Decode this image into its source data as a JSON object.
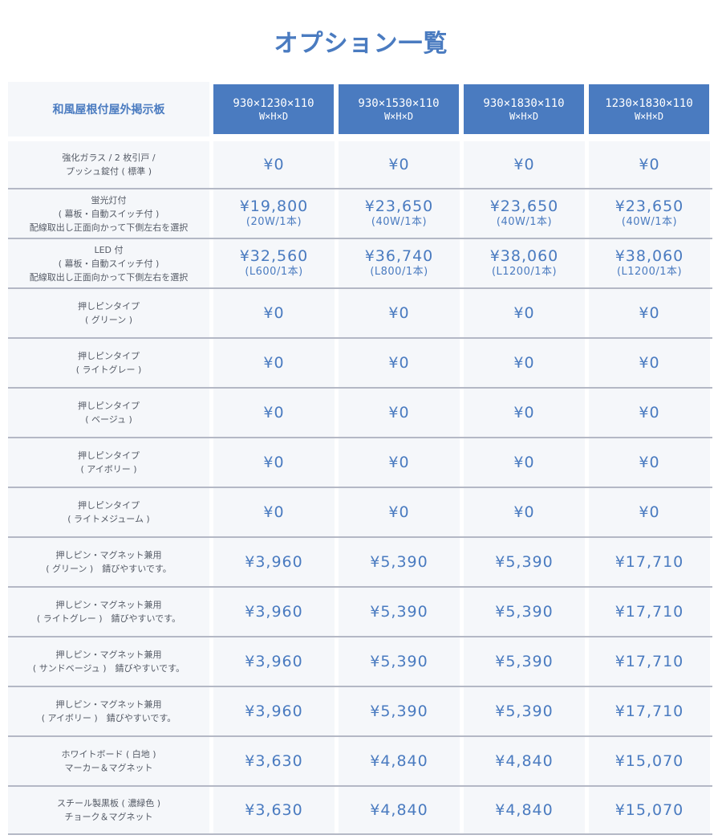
{
  "title": "オプション一覧",
  "header": {
    "label": "和風屋根付屋外掲示板",
    "columns": [
      {
        "size": "930×1230×110",
        "unit": "W×H×D"
      },
      {
        "size": "930×1530×110",
        "unit": "W×H×D"
      },
      {
        "size": "930×1830×110",
        "unit": "W×H×D"
      },
      {
        "size": "1230×1830×110",
        "unit": "W×H×D"
      }
    ]
  },
  "rows": [
    {
      "label": [
        "強化ガラス / 2 枚引戸 /",
        "プッシュ錠付 ( 標準 )"
      ],
      "prices": [
        {
          "value": "¥0"
        },
        {
          "value": "¥0"
        },
        {
          "value": "¥0"
        },
        {
          "value": "¥0"
        }
      ]
    },
    {
      "label": [
        "蛍光灯付",
        "( 幕板・自動スイッチ付 )",
        "配線取出し正面向かって下側左右を選択"
      ],
      "prices": [
        {
          "value": "¥19,800",
          "note": "(20W/1本)"
        },
        {
          "value": "¥23,650",
          "note": "(40W/1本)"
        },
        {
          "value": "¥23,650",
          "note": "(40W/1本)"
        },
        {
          "value": "¥23,650",
          "note": "(40W/1本)"
        }
      ]
    },
    {
      "label": [
        "LED 付",
        "( 幕板・自動スイッチ付 )",
        "配線取出し正面向かって下側左右を選択"
      ],
      "prices": [
        {
          "value": "¥32,560",
          "note": "(L600/1本)"
        },
        {
          "value": "¥36,740",
          "note": "(L800/1本)"
        },
        {
          "value": "¥38,060",
          "note": "(L1200/1本)"
        },
        {
          "value": "¥38,060",
          "note": "(L1200/1本)"
        }
      ]
    },
    {
      "label": [
        "押しピンタイプ",
        "( グリーン )"
      ],
      "prices": [
        {
          "value": "¥0"
        },
        {
          "value": "¥0"
        },
        {
          "value": "¥0"
        },
        {
          "value": "¥0"
        }
      ]
    },
    {
      "label": [
        "押しピンタイプ",
        "( ライトグレー )"
      ],
      "prices": [
        {
          "value": "¥0"
        },
        {
          "value": "¥0"
        },
        {
          "value": "¥0"
        },
        {
          "value": "¥0"
        }
      ]
    },
    {
      "label": [
        "押しピンタイプ",
        "( ベージュ )"
      ],
      "prices": [
        {
          "value": "¥0"
        },
        {
          "value": "¥0"
        },
        {
          "value": "¥0"
        },
        {
          "value": "¥0"
        }
      ]
    },
    {
      "label": [
        "押しピンタイプ",
        "( アイボリー )"
      ],
      "prices": [
        {
          "value": "¥0"
        },
        {
          "value": "¥0"
        },
        {
          "value": "¥0"
        },
        {
          "value": "¥0"
        }
      ]
    },
    {
      "label": [
        "押しピンタイプ",
        "( ライトメジューム )"
      ],
      "prices": [
        {
          "value": "¥0"
        },
        {
          "value": "¥0"
        },
        {
          "value": "¥0"
        },
        {
          "value": "¥0"
        }
      ]
    },
    {
      "label": [
        "押しピン・マグネット兼用",
        "( グリーン )　錆びやすいです。"
      ],
      "prices": [
        {
          "value": "¥3,960"
        },
        {
          "value": "¥5,390"
        },
        {
          "value": "¥5,390"
        },
        {
          "value": "¥17,710"
        }
      ]
    },
    {
      "label": [
        "押しピン・マグネット兼用",
        "( ライトグレー )　錆びやすいです。"
      ],
      "prices": [
        {
          "value": "¥3,960"
        },
        {
          "value": "¥5,390"
        },
        {
          "value": "¥5,390"
        },
        {
          "value": "¥17,710"
        }
      ]
    },
    {
      "label": [
        "押しピン・マグネット兼用",
        "( サンドベージュ )　錆びやすいです。"
      ],
      "prices": [
        {
          "value": "¥3,960"
        },
        {
          "value": "¥5,390"
        },
        {
          "value": "¥5,390"
        },
        {
          "value": "¥17,710"
        }
      ]
    },
    {
      "label": [
        "押しピン・マグネット兼用",
        "( アイボリー )　錆びやすいです。"
      ],
      "prices": [
        {
          "value": "¥3,960"
        },
        {
          "value": "¥5,390"
        },
        {
          "value": "¥5,390"
        },
        {
          "value": "¥17,710"
        }
      ]
    },
    {
      "label": [
        "ホワイトボード ( 白地 )",
        "マーカー＆マグネット"
      ],
      "prices": [
        {
          "value": "¥3,630"
        },
        {
          "value": "¥4,840"
        },
        {
          "value": "¥4,840"
        },
        {
          "value": "¥15,070"
        }
      ]
    },
    {
      "label": [
        "スチール製黒板 ( 濃緑色 )",
        "チョーク＆マグネット"
      ],
      "prices": [
        {
          "value": "¥3,630"
        },
        {
          "value": "¥4,840"
        },
        {
          "value": "¥4,840"
        },
        {
          "value": "¥15,070"
        }
      ]
    }
  ],
  "colors": {
    "accent": "#4a7bc0",
    "row_bg": "#f5f7fa",
    "divider": "#b4b8c5",
    "label_text": "#555b66"
  }
}
